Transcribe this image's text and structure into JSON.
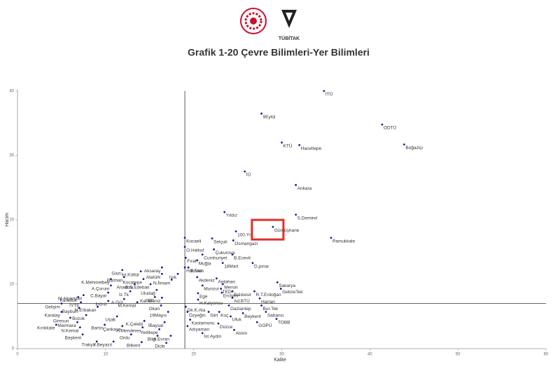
{
  "header": {
    "logo_text": "TÜBİTAK"
  },
  "chart_data": {
    "type": "scatter",
    "title": "Grafik 1-20 Çevre Bilimleri-Yer Bilimleri",
    "x_label": "Kalite",
    "y_label": "Hacim",
    "color": "#1a1a9c",
    "xlim": [
      0,
      60
    ],
    "ylim": [
      0,
      40
    ],
    "xticks": [
      0,
      10,
      20,
      30,
      40,
      50,
      60
    ],
    "yticks": [
      0,
      10,
      20,
      30,
      40
    ],
    "reference_x": 19,
    "reference_y": 7,
    "highlight_index": 11,
    "labels": [
      "İTÜ",
      "9Eylül",
      "ODTÜ",
      "Boğaziçi",
      "KTÜ",
      "Hacettepe",
      "İÜ",
      "Ankara",
      "Yıldız",
      "S.Demirel",
      "100.Yıl",
      "Gümüşhane",
      "Pamukkale",
      "Kocaeli",
      "Selçuk",
      "Osmangazi",
      "O.Halisd",
      "Çukurova",
      "Cumhuriyet",
      "B.Ecevit",
      "Fırat",
      "Muğla",
      "D.pınar",
      "18Mart",
      "Aksaray",
      "H.B.Veli",
      "B.Eren",
      "İst.Kültür",
      "Gazi",
      "Işık",
      "Atatürk",
      "Akdeniz",
      "Ardahan",
      "Batman",
      "Kocatepe",
      "K.Mehmetbey",
      "N.İlmam",
      "B.S.Edebali",
      "Anadolu",
      "A.Çorum",
      "Mersin",
      "Sakarya",
      "Munzur",
      "Uludağ",
      "İz.Tk",
      "C.Bayar",
      "TED",
      "Balıkesir",
      "R.T.Erdoğan",
      "GebzeTek",
      "M.Alparslan",
      "Karabük",
      "Ege",
      "Erciyes",
      "Hitit",
      "Karadeniz",
      "Ad.BTÜ",
      "Harran",
      "A.Gül",
      "İYTE",
      "İnönü",
      "H.Kalyoncu",
      "M.Kemal",
      "Gelişim",
      "N.Erbakan",
      "Ok.K.Ata",
      "Gaziantep",
      "Bur.Tek",
      "Bayburt",
      "Okan",
      "Karatay",
      "Özyeğin",
      "Siirt",
      "Koç",
      "Sabancı",
      "Beykent",
      "Bozok",
      "Uşak",
      "19Mayıs",
      "Giresun",
      "Ufuk",
      "TOBB",
      "Kastamonu",
      "K.Çelebi",
      "Marmara",
      "GOPÜ",
      "İBaysal",
      "Düzce",
      "Bartın",
      "N.Kemal",
      "Kırıkkale",
      "Adıyaman",
      "A.Menderes",
      "Yeditepe",
      "Çankaya",
      "Atılım",
      "İst.Aydın",
      "Başkent",
      "Ordu",
      "Bilgi",
      "A.Evran",
      "Trakya",
      "Y.Beyazıt",
      "Bilkent",
      "Dicle"
    ],
    "x": [
      34.8,
      27.7,
      41.4,
      43.9,
      30.0,
      32.0,
      25.8,
      31.6,
      23.5,
      31.6,
      24.8,
      29.0,
      35.6,
      19.0,
      22.1,
      24.5,
      19.0,
      22.3,
      21.0,
      24.4,
      19.1,
      20.4,
      26.7,
      23.3,
      16.4,
      19.0,
      19.4,
      14.0,
      11.9,
      18.2,
      16.4,
      20.4,
      22.6,
      12.1,
      14.3,
      10.6,
      17.5,
      15.1,
      13.3,
      10.6,
      23.3,
      29.5,
      21.0,
      15.8,
      12.8,
      10.3,
      23.1,
      24.4,
      26.9,
      29.9,
      7.5,
      6.9,
      20.5,
      23.2,
      15.6,
      16.4,
      24.4,
      27.5,
      12.1,
      7.2,
      10.3,
      20.5,
      13.6,
      5.0,
      9.1,
      19.1,
      24.0,
      27.7,
      7.0,
      16.3,
      5.0,
      19.3,
      21.7,
      22.9,
      28.2,
      25.6,
      7.8,
      11.3,
      17.1,
      6.0,
      24.2,
      29.4,
      19.6,
      14.4,
      6.8,
      27.2,
      16.7,
      22.8,
      9.9,
      7.1,
      4.4,
      19.3,
      14.2,
      16.1,
      11.9,
      24.6,
      21.0,
      7.4,
      12.9,
      15.9,
      17.4,
      9.0,
      10.9,
      14.1,
      16.9
    ],
    "values": [
      40.0,
      36.5,
      34.8,
      31.7,
      32.0,
      31.6,
      27.5,
      25.4,
      21.2,
      20.8,
      18.2,
      18.9,
      17.2,
      17.2,
      17.1,
      16.8,
      15.8,
      15.4,
      14.6,
      14.6,
      14.1,
      13.7,
      13.3,
      13.3,
      12.6,
      12.6,
      12.6,
      12.0,
      12.2,
      11.6,
      11.6,
      11.1,
      10.9,
      11.1,
      10.8,
      10.8,
      10.7,
      10.0,
      10.0,
      9.8,
      10.0,
      10.3,
      9.8,
      9.1,
      8.9,
      8.7,
      9.3,
      8.9,
      8.9,
      9.3,
      8.3,
      8.0,
      8.6,
      8.7,
      8.0,
      7.9,
      7.9,
      7.8,
      7.7,
      7.2,
      7.4,
      7.6,
      7.2,
      7.0,
      6.5,
      6.5,
      6.7,
      6.7,
      6.3,
      6.7,
      5.7,
      5.7,
      5.7,
      5.7,
      5.7,
      5.5,
      5.2,
      5.0,
      5.7,
      4.8,
      5.0,
      4.6,
      4.5,
      4.3,
      4.1,
      4.1,
      4.1,
      3.9,
      3.7,
      3.3,
      3.7,
      3.5,
      3.3,
      3.0,
      3.5,
      2.9,
      2.4,
      2.2,
      2.2,
      2.0,
      2.0,
      1.1,
      1.1,
      1.0,
      0.9
    ]
  }
}
